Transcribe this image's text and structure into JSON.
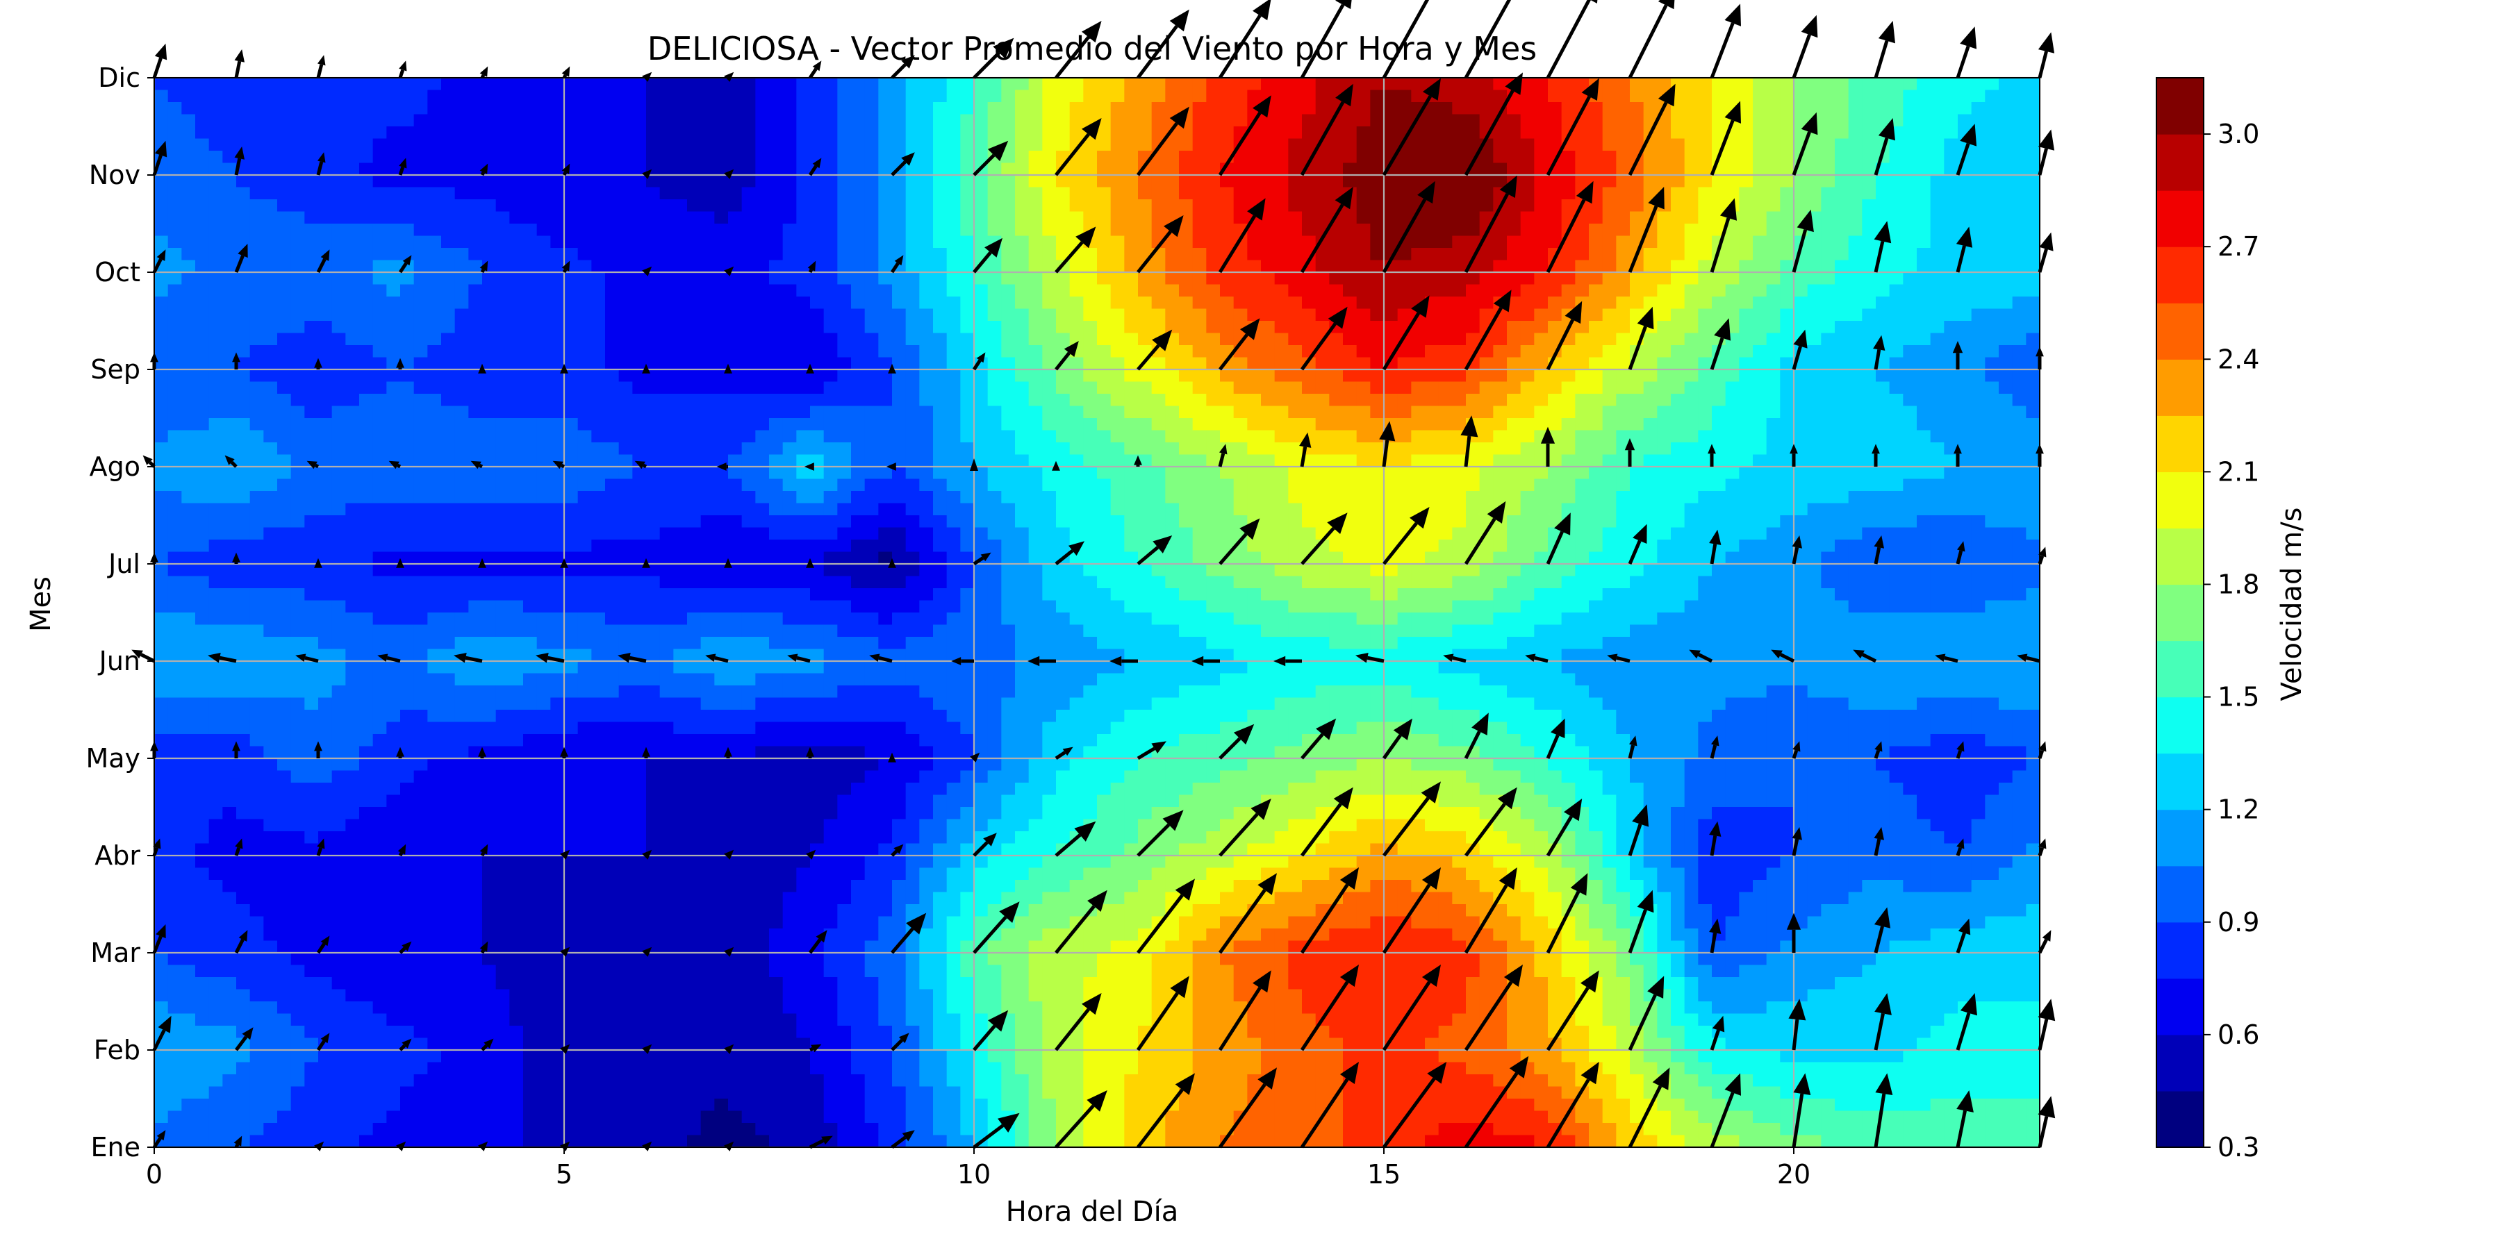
{
  "chart_data": {
    "type": "heatmap",
    "subtype": "filled contour with wind vectors",
    "title": "DELICIOSA - Vector Promedio del Viento por Hora y Mes",
    "xlabel": "Hora del Día",
    "ylabel": "Mes",
    "colorbar_label": "Velocidad m/s",
    "xlim": [
      0,
      23
    ],
    "x_ticks": [
      0,
      5,
      10,
      15,
      20
    ],
    "y_categories": [
      "Ene",
      "Feb",
      "Mar",
      "Abr",
      "May",
      "Jun",
      "Jul",
      "Ago",
      "Sep",
      "Oct",
      "Nov",
      "Dic"
    ],
    "colorbar_ticks": [
      "0.3",
      "0.6",
      "0.9",
      "1.2",
      "1.5",
      "1.8",
      "2.1",
      "2.4",
      "2.7",
      "3.0"
    ],
    "levels": [
      0.3,
      0.45,
      0.6,
      0.75,
      0.9,
      1.05,
      1.2,
      1.35,
      1.5,
      1.65,
      1.8,
      1.95,
      2.1,
      2.25,
      2.4,
      2.55,
      2.7,
      2.85,
      3.0,
      3.15
    ],
    "colorscale": "jet",
    "grid": true,
    "speed_ms": [
      [
        1.0,
        0.9,
        0.8,
        0.7,
        0.6,
        0.6,
        0.5,
        0.4,
        0.5,
        0.8,
        1.2,
        1.8,
        2.2,
        2.4,
        2.5,
        2.6,
        2.8,
        2.7,
        2.2,
        1.9,
        1.7,
        1.6,
        1.6,
        1.6
      ],
      [
        1.2,
        1.1,
        0.9,
        0.8,
        0.7,
        0.5,
        0.5,
        0.5,
        0.6,
        0.9,
        1.4,
        1.9,
        2.1,
        2.3,
        2.5,
        2.6,
        2.5,
        2.3,
        1.9,
        1.4,
        1.3,
        1.3,
        1.4,
        1.4
      ],
      [
        0.9,
        0.8,
        0.7,
        0.6,
        0.6,
        0.5,
        0.5,
        0.5,
        0.7,
        1.0,
        1.6,
        1.9,
        2.0,
        2.4,
        2.6,
        2.7,
        2.6,
        2.2,
        1.7,
        0.9,
        1.1,
        1.2,
        1.3,
        1.3
      ],
      [
        0.8,
        0.7,
        0.7,
        0.6,
        0.6,
        0.6,
        0.6,
        0.5,
        0.6,
        0.8,
        1.3,
        1.5,
        1.7,
        1.9,
        2.1,
        2.3,
        2.2,
        1.9,
        1.3,
        0.8,
        0.9,
        1.0,
        0.9,
        1.1
      ],
      [
        0.8,
        0.8,
        1.0,
        0.8,
        0.7,
        0.6,
        0.6,
        0.6,
        0.5,
        0.6,
        0.9,
        1.3,
        1.5,
        1.6,
        1.7,
        1.8,
        1.7,
        1.5,
        1.2,
        1.0,
        0.9,
        0.9,
        0.8,
        0.9
      ],
      [
        1.2,
        1.2,
        1.1,
        1.0,
        1.2,
        1.1,
        1.0,
        1.2,
        1.1,
        1.0,
        1.0,
        1.1,
        1.2,
        1.3,
        1.4,
        1.4,
        1.3,
        1.2,
        1.1,
        1.1,
        1.1,
        1.2,
        1.2,
        1.2
      ],
      [
        0.9,
        0.8,
        0.8,
        0.7,
        0.7,
        0.7,
        0.7,
        0.6,
        0.6,
        0.4,
        0.9,
        1.3,
        1.5,
        1.7,
        1.9,
        2.0,
        1.9,
        1.6,
        1.4,
        1.2,
        1.1,
        0.9,
        0.9,
        1.0
      ],
      [
        1.1,
        1.2,
        1.0,
        1.0,
        1.0,
        1.0,
        0.9,
        0.9,
        1.3,
        0.9,
        1.2,
        1.4,
        1.6,
        1.8,
        2.0,
        2.1,
        2.0,
        1.8,
        1.5,
        1.4,
        1.3,
        1.3,
        1.2,
        1.2
      ],
      [
        0.9,
        0.9,
        0.8,
        0.9,
        0.8,
        0.8,
        0.7,
        0.7,
        0.6,
        0.9,
        1.3,
        1.7,
        2.0,
        2.3,
        2.5,
        2.7,
        2.6,
        2.2,
        1.9,
        1.6,
        1.3,
        1.2,
        1.1,
        0.9
      ],
      [
        1.1,
        1.0,
        1.0,
        1.1,
        0.9,
        0.8,
        0.7,
        0.7,
        0.8,
        1.1,
        1.5,
        1.9,
        2.3,
        2.6,
        2.8,
        3.0,
        2.9,
        2.7,
        2.3,
        1.9,
        1.6,
        1.4,
        1.3,
        1.3
      ],
      [
        1.0,
        0.9,
        0.8,
        0.7,
        0.7,
        0.6,
        0.6,
        0.5,
        0.8,
        1.1,
        1.6,
        2.1,
        2.4,
        2.7,
        2.9,
        3.1,
        3.2,
        2.8,
        2.5,
        2.1,
        1.8,
        1.5,
        1.3,
        1.2
      ],
      [
        0.9,
        0.8,
        0.8,
        0.8,
        0.7,
        0.6,
        0.6,
        0.5,
        0.8,
        1.1,
        1.5,
        2.0,
        2.3,
        2.6,
        2.8,
        3.0,
        2.9,
        2.7,
        2.4,
        2.1,
        1.8,
        1.6,
        1.4,
        1.3
      ]
    ],
    "wind_u": [
      [
        0.2,
        0.1,
        0.1,
        0.1,
        0.1,
        0.1,
        0.1,
        0.1,
        0.4,
        0.4,
        0.8,
        0.9,
        1.0,
        1.0,
        1.0,
        1.1,
        1.1,
        0.9,
        0.7,
        0.5,
        0.2,
        0.2,
        0.2,
        0.2
      ],
      [
        0.3,
        0.3,
        0.2,
        0.2,
        0.2,
        0.1,
        0.1,
        0.1,
        0.2,
        0.3,
        0.6,
        0.8,
        0.9,
        0.9,
        1.0,
        1.0,
        1.0,
        0.9,
        0.6,
        0.2,
        0.1,
        0.2,
        0.3,
        0.2
      ],
      [
        0.2,
        0.2,
        0.2,
        0.2,
        0.1,
        0.1,
        0.1,
        0.1,
        0.3,
        0.6,
        0.8,
        0.9,
        1.0,
        1.0,
        1.0,
        1.0,
        0.9,
        0.7,
        0.4,
        0.1,
        0.0,
        0.2,
        0.2,
        0.2
      ],
      [
        0.1,
        0.1,
        0.1,
        0.1,
        0.1,
        0.1,
        0.1,
        0.1,
        0.1,
        0.2,
        0.4,
        0.7,
        0.8,
        0.9,
        0.9,
        1.0,
        0.9,
        0.6,
        0.3,
        0.1,
        0.1,
        0.1,
        0.1,
        0.1
      ],
      [
        0.0,
        0.0,
        0.0,
        0.0,
        0.0,
        0.0,
        0.0,
        0.0,
        0.0,
        0.0,
        0.1,
        0.3,
        0.5,
        0.6,
        0.6,
        0.5,
        0.4,
        0.3,
        0.1,
        0.1,
        0.1,
        0.1,
        0.1,
        0.1
      ],
      [
        -0.4,
        -0.5,
        -0.4,
        -0.4,
        -0.5,
        -0.5,
        -0.5,
        -0.4,
        -0.4,
        -0.4,
        -0.4,
        -0.5,
        -0.5,
        -0.5,
        -0.5,
        -0.5,
        -0.4,
        -0.4,
        -0.4,
        -0.4,
        -0.4,
        -0.4,
        -0.4,
        -0.4
      ],
      [
        0.0,
        0.0,
        0.0,
        0.0,
        0.0,
        0.0,
        0.0,
        0.0,
        0.0,
        0.0,
        0.3,
        0.5,
        0.6,
        0.7,
        0.8,
        0.8,
        0.7,
        0.4,
        0.3,
        0.1,
        0.1,
        0.1,
        0.1,
        0.1
      ],
      [
        -0.2,
        -0.2,
        -0.2,
        -0.2,
        -0.2,
        -0.2,
        -0.2,
        -0.2,
        -0.1,
        -0.1,
        0.0,
        0.0,
        0.0,
        0.1,
        0.1,
        0.1,
        0.1,
        0.0,
        0.0,
        0.0,
        0.0,
        0.0,
        0.0,
        0.0
      ],
      [
        0.0,
        0.0,
        0.0,
        0.0,
        0.0,
        0.0,
        0.0,
        0.0,
        0.0,
        0.0,
        0.2,
        0.4,
        0.6,
        0.7,
        0.8,
        0.8,
        0.8,
        0.6,
        0.4,
        0.3,
        0.2,
        0.1,
        0.0,
        0.0
      ],
      [
        0.2,
        0.2,
        0.2,
        0.2,
        0.1,
        0.1,
        0.1,
        0.1,
        0.1,
        0.2,
        0.5,
        0.7,
        0.8,
        0.8,
        0.9,
        0.9,
        0.9,
        0.8,
        0.6,
        0.4,
        0.3,
        0.2,
        0.2,
        0.2
      ],
      [
        0.2,
        0.1,
        0.1,
        0.1,
        0.1,
        0.1,
        0.1,
        0.1,
        0.2,
        0.4,
        0.6,
        0.8,
        0.9,
        0.9,
        0.9,
        1.0,
        1.0,
        0.9,
        0.8,
        0.5,
        0.4,
        0.3,
        0.3,
        0.2
      ],
      [
        0.2,
        0.1,
        0.1,
        0.1,
        0.1,
        0.1,
        0.1,
        0.1,
        0.2,
        0.4,
        0.7,
        0.8,
        0.9,
        0.9,
        0.9,
        1.0,
        1.0,
        0.9,
        0.8,
        0.5,
        0.4,
        0.3,
        0.3,
        0.2
      ]
    ],
    "wind_v": [
      [
        0.3,
        0.2,
        0.1,
        0.1,
        0.1,
        0.1,
        0.1,
        0.1,
        0.2,
        0.3,
        0.6,
        1.0,
        1.3,
        1.4,
        1.5,
        1.5,
        1.6,
        1.5,
        1.4,
        1.3,
        1.3,
        1.3,
        1.0,
        0.9
      ],
      [
        0.6,
        0.4,
        0.3,
        0.2,
        0.2,
        0.1,
        0.1,
        0.1,
        0.1,
        0.3,
        0.7,
        1.0,
        1.3,
        1.4,
        1.5,
        1.5,
        1.5,
        1.4,
        1.3,
        0.6,
        0.9,
        1.0,
        1.0,
        0.9
      ],
      [
        0.5,
        0.4,
        0.3,
        0.2,
        0.2,
        0.1,
        0.1,
        0.1,
        0.4,
        0.7,
        0.9,
        1.1,
        1.3,
        1.4,
        1.5,
        1.5,
        1.5,
        1.4,
        1.1,
        0.6,
        0.7,
        0.8,
        0.6,
        0.4
      ],
      [
        0.3,
        0.3,
        0.3,
        0.2,
        0.2,
        0.1,
        0.1,
        0.1,
        0.1,
        0.2,
        0.4,
        0.6,
        0.8,
        1.0,
        1.2,
        1.3,
        1.2,
        1.0,
        0.9,
        0.6,
        0.5,
        0.5,
        0.3,
        0.3
      ],
      [
        0.3,
        0.3,
        0.3,
        0.2,
        0.2,
        0.2,
        0.2,
        0.2,
        0.2,
        0.1,
        0.1,
        0.2,
        0.3,
        0.6,
        0.7,
        0.7,
        0.8,
        0.7,
        0.4,
        0.4,
        0.3,
        0.3,
        0.3,
        0.3
      ],
      [
        0.2,
        0.1,
        0.1,
        0.1,
        0.1,
        0.1,
        0.1,
        0.1,
        0.1,
        0.1,
        0.0,
        0.0,
        0.0,
        0.0,
        0.0,
        0.1,
        0.1,
        0.1,
        0.1,
        0.2,
        0.2,
        0.2,
        0.1,
        0.1
      ],
      [
        0.2,
        0.2,
        0.1,
        0.1,
        0.1,
        0.1,
        0.1,
        0.1,
        0.1,
        0.1,
        0.2,
        0.4,
        0.5,
        0.8,
        0.9,
        1.0,
        1.1,
        0.9,
        0.7,
        0.6,
        0.5,
        0.5,
        0.4,
        0.3
      ],
      [
        0.2,
        0.2,
        0.1,
        0.1,
        0.1,
        0.1,
        0.1,
        0.0,
        0.0,
        0.0,
        0.0,
        0.1,
        0.2,
        0.4,
        0.6,
        0.8,
        0.9,
        0.7,
        0.5,
        0.4,
        0.4,
        0.4,
        0.4,
        0.4
      ],
      [
        0.3,
        0.3,
        0.2,
        0.2,
        0.1,
        0.1,
        0.1,
        0.1,
        0.1,
        0.1,
        0.3,
        0.5,
        0.7,
        0.9,
        1.1,
        1.3,
        1.4,
        1.2,
        1.1,
        0.9,
        0.7,
        0.6,
        0.5,
        0.4
      ],
      [
        0.4,
        0.5,
        0.4,
        0.3,
        0.2,
        0.2,
        0.1,
        0.1,
        0.2,
        0.3,
        0.6,
        0.8,
        1.0,
        1.3,
        1.5,
        1.6,
        1.7,
        1.6,
        1.5,
        1.3,
        1.1,
        0.9,
        0.8,
        0.7
      ],
      [
        0.6,
        0.5,
        0.4,
        0.3,
        0.2,
        0.2,
        0.1,
        0.1,
        0.3,
        0.4,
        0.6,
        1.0,
        1.2,
        1.4,
        1.6,
        1.7,
        1.8,
        1.7,
        1.6,
        1.3,
        1.1,
        1.0,
        0.9,
        0.8
      ],
      [
        0.6,
        0.5,
        0.4,
        0.3,
        0.2,
        0.2,
        0.1,
        0.1,
        0.3,
        0.4,
        0.7,
        1.0,
        1.2,
        1.4,
        1.6,
        1.8,
        1.8,
        1.7,
        1.6,
        1.3,
        1.1,
        1.0,
        0.9,
        0.8
      ]
    ]
  }
}
